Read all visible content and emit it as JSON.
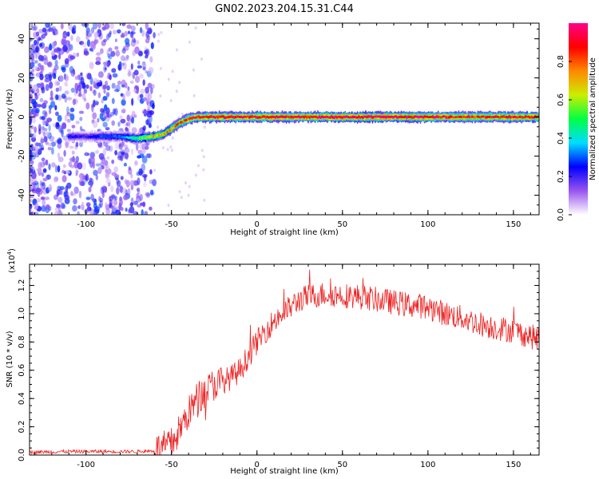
{
  "figure_title": "GN02.2023.204.15.31.C44",
  "chart_data": [
    {
      "type": "heatmap",
      "title": "GN02.2023.204.15.31.C44",
      "xlabel": "Height of straight line (km)",
      "ylabel": "Frequency (Hz)",
      "xlim": [
        -133,
        165
      ],
      "ylim": [
        -50,
        48
      ],
      "xticks": [
        -100,
        -50,
        0,
        50,
        100,
        150
      ],
      "yticks": [
        -40,
        -20,
        0,
        20,
        40
      ],
      "ridge": {
        "x": [
          -110,
          -100,
          -90,
          -80,
          -70,
          -60,
          -55,
          -50,
          -45,
          -40,
          -35,
          -30,
          -20,
          0,
          20,
          50,
          80,
          110,
          130,
          165
        ],
        "freq": [
          -10,
          -10,
          -10,
          -10,
          -11,
          -10,
          -9,
          -6,
          -3,
          -1,
          0,
          0,
          0,
          0,
          0,
          0,
          0,
          0,
          0,
          0
        ],
        "amplitude": [
          0.25,
          0.2,
          0.3,
          0.3,
          0.5,
          0.7,
          0.7,
          0.75,
          0.8,
          0.85,
          0.9,
          0.9,
          0.9,
          0.9,
          0.9,
          0.95,
          0.95,
          0.9,
          0.85,
          0.9
        ]
      },
      "noise_region_x": [
        -133,
        -60
      ],
      "colorbar": {
        "label": "Normalized spectral amplitude",
        "ticks": [
          "0.0",
          "0.2",
          "0.4",
          "0.6",
          "0.8"
        ],
        "range": [
          0,
          1
        ],
        "colors": [
          "#ffffff",
          "#9955ee",
          "#0000ff",
          "#00ddff",
          "#00ff44",
          "#ccee00",
          "#ff8800",
          "#ff0000",
          "#ff0088"
        ]
      }
    },
    {
      "type": "line",
      "xlabel": "Height of straight line (km)",
      "ylabel": "SNR (10 * v/v)",
      "yscale_label": "(x10",
      "yscale_exp": "4",
      "xlim": [
        -133,
        165
      ],
      "ylim": [
        0,
        1.35
      ],
      "xticks": [
        -100,
        -50,
        0,
        50,
        100,
        150
      ],
      "yticks": [
        "0.0",
        "0.2",
        "0.4",
        "0.6",
        "0.8",
        "1.0",
        "1.2"
      ],
      "series": [
        {
          "color": "#ee2222",
          "x": [
            -133,
            -110,
            -90,
            -70,
            -60,
            -55,
            -50,
            -45,
            -40,
            -35,
            -30,
            -25,
            -20,
            -15,
            -10,
            -5,
            0,
            5,
            10,
            15,
            20,
            25,
            30,
            35,
            40,
            50,
            60,
            70,
            80,
            90,
            100,
            110,
            120,
            130,
            140,
            150,
            165
          ],
          "y": [
            0.02,
            0.025,
            0.025,
            0.025,
            0.03,
            0.05,
            0.08,
            0.18,
            0.3,
            0.4,
            0.45,
            0.5,
            0.52,
            0.55,
            0.6,
            0.7,
            0.8,
            0.88,
            0.95,
            1.0,
            1.05,
            1.1,
            1.12,
            1.13,
            1.14,
            1.13,
            1.12,
            1.1,
            1.08,
            1.06,
            1.05,
            1.0,
            0.97,
            0.93,
            0.9,
            0.88,
            0.82
          ]
        }
      ]
    }
  ]
}
